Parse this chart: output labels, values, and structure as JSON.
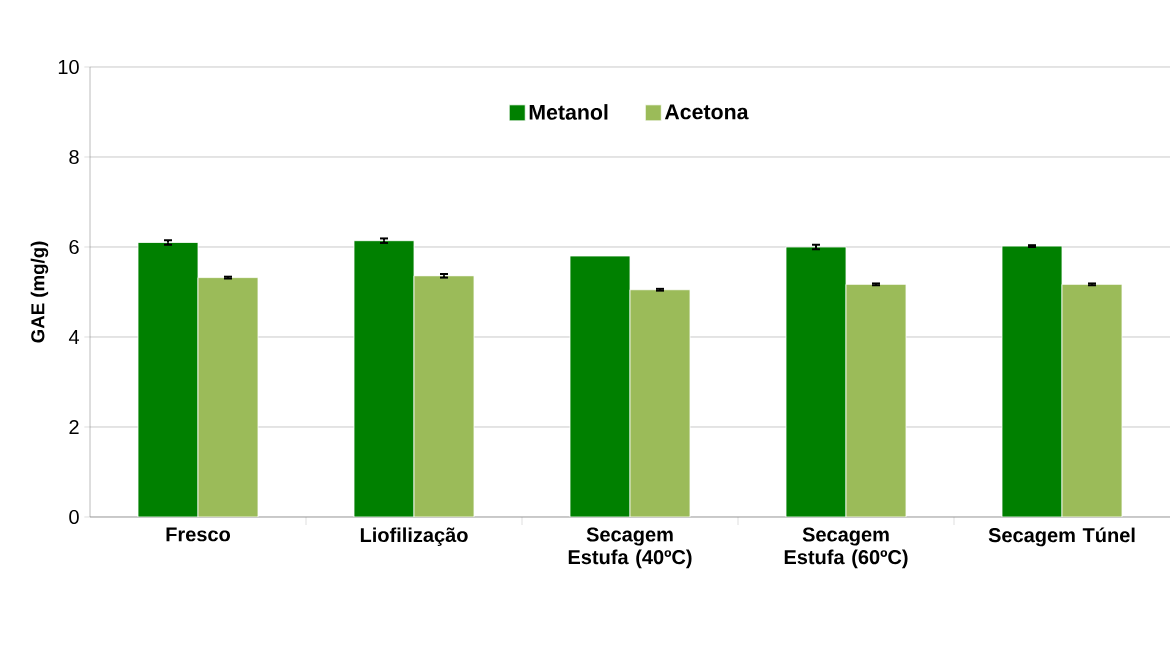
{
  "chart_data": {
    "type": "bar",
    "ylabel": "GAE (mg/g)",
    "categories": [
      "Fresco",
      "Liofilização",
      "Secagem Estufa (40ºC)",
      "Secagem Estufa (60ºC)",
      "Secagem Túnel"
    ],
    "series": [
      {
        "name": "Metanol",
        "color": "#008000",
        "values": [
          6.1,
          6.14,
          5.8,
          6.0,
          6.02
        ],
        "errors": [
          0.05,
          0.05,
          null,
          0.05,
          0.02
        ]
      },
      {
        "name": "Acetona",
        "color": "#9bbb59",
        "values": [
          5.32,
          5.36,
          5.05,
          5.17,
          5.17
        ],
        "errors": [
          0.02,
          0.04,
          0.02,
          0.02,
          0.02
        ]
      }
    ],
    "ylim": [
      0,
      10
    ],
    "yticks": [
      0,
      2,
      4,
      6,
      8,
      10
    ],
    "grid": "y",
    "legend": "top"
  }
}
